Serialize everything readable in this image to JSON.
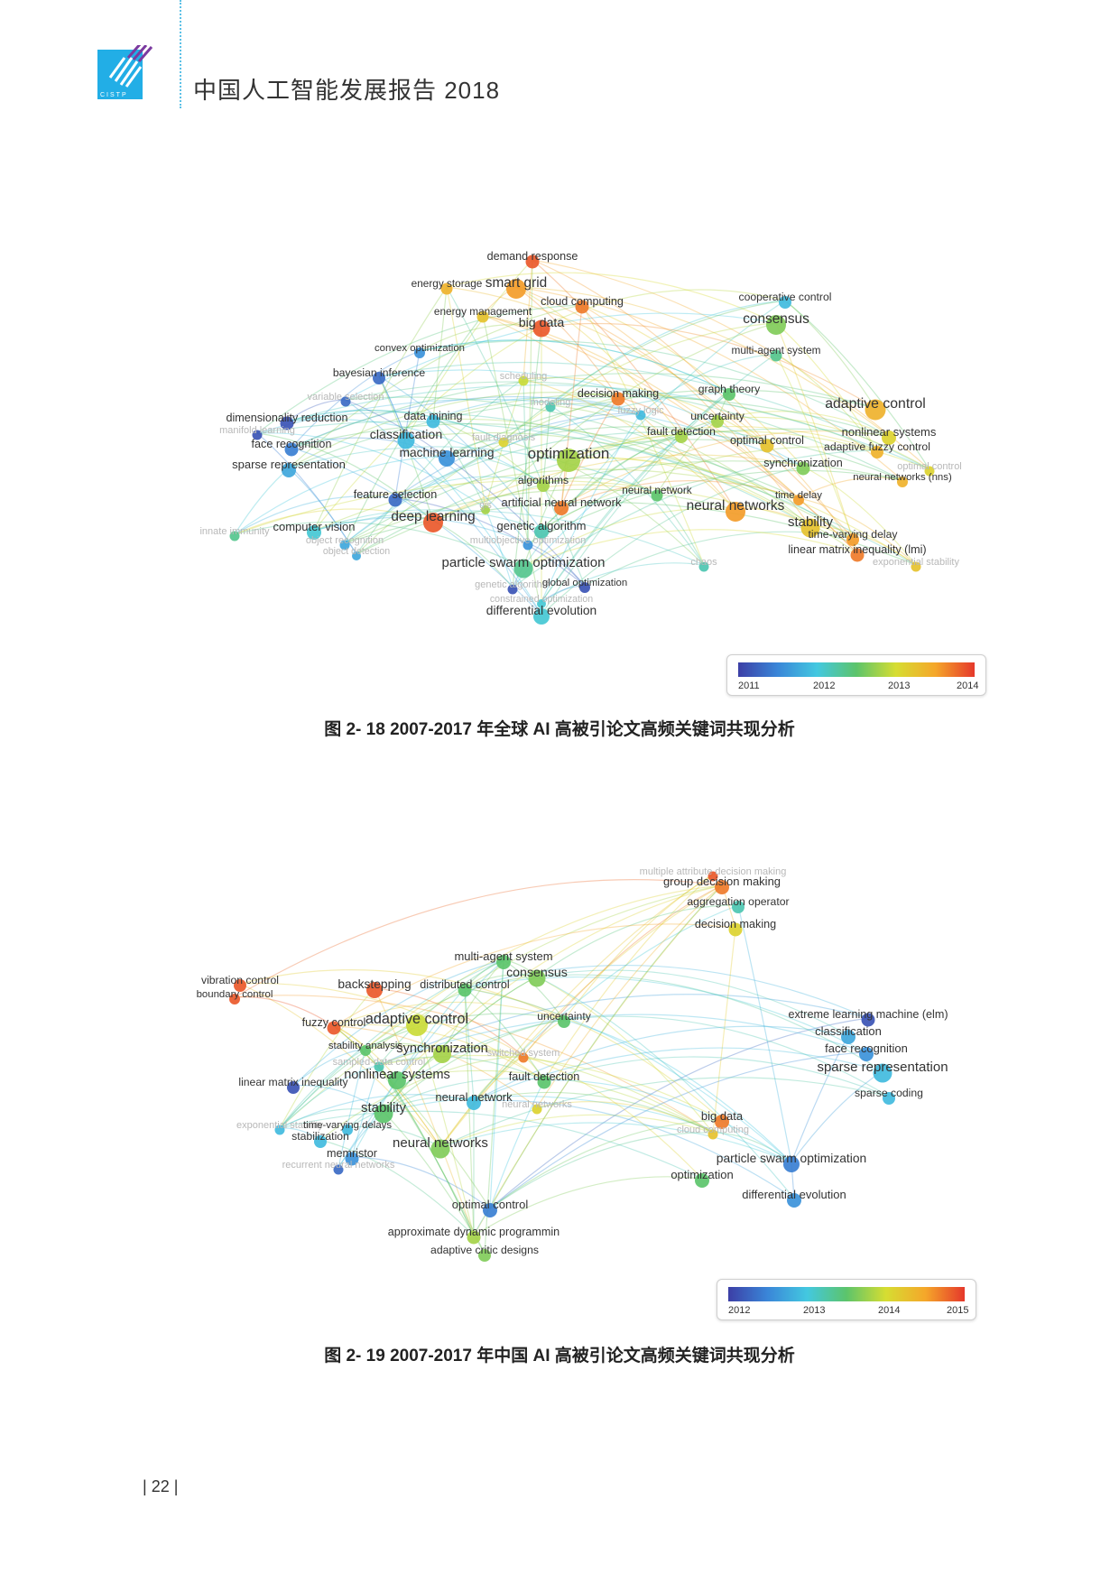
{
  "header": {
    "title": "中国人工智能发展报告 2018",
    "logo_text": "CISTP"
  },
  "page": {
    "number": "22"
  },
  "figures": [
    {
      "caption": "图 2- 18  2007-2017 年全球 AI 高被引论文高频关键词共现分析",
      "legend_ticks": [
        "2011",
        "2012",
        "2013",
        "2014"
      ],
      "legend_colors": [
        "#3c3fa6",
        "#3a86d8",
        "#43c8e0",
        "#5cc46b",
        "#d6dd32",
        "#f5a72a",
        "#e5382b"
      ],
      "nodes": [
        {
          "label": "demand response",
          "w": 0.9,
          "c": 0.95
        },
        {
          "label": "energy storage",
          "w": 0.7,
          "c": 0.8
        },
        {
          "label": "smart grid",
          "w": 1.6,
          "c": 0.85
        },
        {
          "label": "cloud computing",
          "w": 0.9,
          "c": 0.9
        },
        {
          "label": "energy management",
          "w": 0.7,
          "c": 0.75
        },
        {
          "label": "big data",
          "w": 1.3,
          "c": 0.95
        },
        {
          "label": "cooperative control",
          "w": 0.8,
          "c": 0.3
        },
        {
          "label": "consensus",
          "w": 1.6,
          "c": 0.55
        },
        {
          "label": "multi-agent system",
          "w": 0.7,
          "c": 0.45
        },
        {
          "label": "convex optimization",
          "w": 0.6,
          "c": 0.2
        },
        {
          "label": "bayesian inference",
          "w": 0.8,
          "c": 0.1
        },
        {
          "label": "scheduling",
          "w": 0.5,
          "c": 0.65
        },
        {
          "label": "variable selection",
          "w": 0.5,
          "c": 0.1
        },
        {
          "label": "modeling",
          "w": 0.5,
          "c": 0.4
        },
        {
          "label": "decision making",
          "w": 0.9,
          "c": 0.9
        },
        {
          "label": "graph theory",
          "w": 0.8,
          "c": 0.5
        },
        {
          "label": "adaptive control",
          "w": 1.7,
          "c": 0.8
        },
        {
          "label": "dimensionality reduction",
          "w": 0.9,
          "c": 0.05
        },
        {
          "label": "data mining",
          "w": 0.9,
          "c": 0.3
        },
        {
          "label": "fuzzy logic",
          "w": 0.5,
          "c": 0.3
        },
        {
          "label": "uncertainty",
          "w": 0.8,
          "c": 0.6
        },
        {
          "label": "manifold learning",
          "w": 0.5,
          "c": 0.05
        },
        {
          "label": "classification",
          "w": 1.3,
          "c": 0.3
        },
        {
          "label": "fault diagnosis",
          "w": 0.5,
          "c": 0.7
        },
        {
          "label": "fault detection",
          "w": 0.8,
          "c": 0.6
        },
        {
          "label": "nonlinear systems",
          "w": 1.0,
          "c": 0.7
        },
        {
          "label": "face recognition",
          "w": 0.9,
          "c": 0.15
        },
        {
          "label": "machine learning",
          "w": 1.2,
          "c": 0.2
        },
        {
          "label": "optimization",
          "w": 2.0,
          "c": 0.6
        },
        {
          "label": "optimal control",
          "w": 0.9,
          "c": 0.75
        },
        {
          "label": "adaptive fuzzy control",
          "w": 0.8,
          "c": 0.8
        },
        {
          "label": "sparse representation",
          "w": 1.0,
          "c": 0.25
        },
        {
          "label": "synchronization",
          "w": 0.9,
          "c": 0.55
        },
        {
          "label": "optimal control",
          "w": 0.5,
          "c": 0.7
        },
        {
          "label": "algorithms",
          "w": 0.8,
          "c": 0.6
        },
        {
          "label": "neural network",
          "w": 0.7,
          "c": 0.5
        },
        {
          "label": "neural networks (nns)",
          "w": 0.6,
          "c": 0.8
        },
        {
          "label": "feature selection",
          "w": 0.9,
          "c": 0.1
        },
        {
          "label": "time delay",
          "w": 0.6,
          "c": 0.85
        },
        {
          "label": "neural networks",
          "w": 1.6,
          "c": 0.85
        },
        {
          "label": "gis",
          "w": 0.4,
          "c": 0.6
        },
        {
          "label": "artificial neural network",
          "w": 1.0,
          "c": 0.9
        },
        {
          "label": "deep learning",
          "w": 1.6,
          "c": 0.95
        },
        {
          "label": "stability",
          "w": 1.5,
          "c": 0.75
        },
        {
          "label": "genetic algorithm",
          "w": 1.0,
          "c": 0.4
        },
        {
          "label": "innate immunity",
          "w": 0.5,
          "c": 0.45
        },
        {
          "label": "computer vision",
          "w": 1.0,
          "c": 0.35
        },
        {
          "label": "time-varying delay",
          "w": 0.8,
          "c": 0.85
        },
        {
          "label": "object recognition",
          "w": 0.5,
          "c": 0.25
        },
        {
          "label": "multiobjective optimization",
          "w": 0.5,
          "c": 0.2
        },
        {
          "label": "linear matrix inequality (lmi)",
          "w": 0.9,
          "c": 0.9
        },
        {
          "label": "object detection",
          "w": 0.4,
          "c": 0.25
        },
        {
          "label": "exponential stability",
          "w": 0.5,
          "c": 0.75
        },
        {
          "label": "particle swarm optimization",
          "w": 1.5,
          "c": 0.45
        },
        {
          "label": "chaos",
          "w": 0.5,
          "c": 0.4
        },
        {
          "label": "genetic algorithm",
          "w": 0.5,
          "c": 0.05
        },
        {
          "label": "global optimization",
          "w": 0.6,
          "c": 0.05
        },
        {
          "label": "constrained optimization",
          "w": 0.4,
          "c": 0.35
        },
        {
          "label": "differential evolution",
          "w": 1.2,
          "c": 0.35
        }
      ]
    },
    {
      "caption": "图 2- 19  2007-2017 年中国 AI 高被引论文高频关键词共现分析",
      "legend_ticks": [
        "2012",
        "2013",
        "2014",
        "2015"
      ],
      "legend_colors": [
        "#3c3fa6",
        "#3a86d8",
        "#43c8e0",
        "#5cc46b",
        "#d6dd32",
        "#f5a72a",
        "#e5382b"
      ],
      "nodes": [
        {
          "label": "multiple attribute decision making",
          "w": 0.5,
          "c": 0.95
        },
        {
          "label": "group decision making",
          "w": 1.0,
          "c": 0.9
        },
        {
          "label": "aggregation operator",
          "w": 0.8,
          "c": 0.4
        },
        {
          "label": "decision making",
          "w": 0.9,
          "c": 0.7
        },
        {
          "label": "multi-agent system",
          "w": 1.0,
          "c": 0.5
        },
        {
          "label": "consensus",
          "w": 1.3,
          "c": 0.55
        },
        {
          "label": "vibration control",
          "w": 0.8,
          "c": 0.95
        },
        {
          "label": "backstepping",
          "w": 1.2,
          "c": 0.95
        },
        {
          "label": "distributed control",
          "w": 0.9,
          "c": 0.5
        },
        {
          "label": "boundary control",
          "w": 0.6,
          "c": 0.95
        },
        {
          "label": "extreme learning machine (elm)",
          "w": 0.9,
          "c": 0.05
        },
        {
          "label": "uncertainty",
          "w": 0.8,
          "c": 0.5
        },
        {
          "label": "fuzzy control",
          "w": 0.9,
          "c": 0.95
        },
        {
          "label": "adaptive control",
          "w": 1.8,
          "c": 0.65
        },
        {
          "label": "classification",
          "w": 1.0,
          "c": 0.25
        },
        {
          "label": "stability analysis",
          "w": 0.6,
          "c": 0.5
        },
        {
          "label": "face recognition",
          "w": 1.0,
          "c": 0.2
        },
        {
          "label": "synchronization",
          "w": 1.4,
          "c": 0.6
        },
        {
          "label": "switched system",
          "w": 0.5,
          "c": 0.9
        },
        {
          "label": "sampled-data control",
          "w": 0.5,
          "c": 0.4
        },
        {
          "label": "sparse representation",
          "w": 1.5,
          "c": 0.3
        },
        {
          "label": "nonlinear systems",
          "w": 1.4,
          "c": 0.5
        },
        {
          "label": "fault detection",
          "w": 0.9,
          "c": 0.5
        },
        {
          "label": "linear matrix inequality",
          "w": 0.8,
          "c": 0.05
        },
        {
          "label": "sparse coding",
          "w": 0.8,
          "c": 0.3
        },
        {
          "label": "neural network",
          "w": 1.0,
          "c": 0.3
        },
        {
          "label": "stability",
          "w": 1.5,
          "c": 0.5
        },
        {
          "label": "neural networks",
          "w": 0.5,
          "c": 0.7
        },
        {
          "label": "big data",
          "w": 1.0,
          "c": 0.9
        },
        {
          "label": "exponential stability",
          "w": 0.5,
          "c": 0.3
        },
        {
          "label": "time-varying delays",
          "w": 0.6,
          "c": 0.3
        },
        {
          "label": "stabilization",
          "w": 0.8,
          "c": 0.3
        },
        {
          "label": "cloud computing",
          "w": 0.5,
          "c": 0.75
        },
        {
          "label": "neural networks",
          "w": 1.5,
          "c": 0.55
        },
        {
          "label": "memristor",
          "w": 0.9,
          "c": 0.2
        },
        {
          "label": "recurrent neural networks",
          "w": 0.5,
          "c": 0.1
        },
        {
          "label": "particle swarm optimization",
          "w": 1.2,
          "c": 0.15
        },
        {
          "label": "optimization",
          "w": 1.0,
          "c": 0.5
        },
        {
          "label": "differential evolution",
          "w": 1.0,
          "c": 0.2
        },
        {
          "label": "optimal control",
          "w": 1.0,
          "c": 0.15
        },
        {
          "label": "approximate dynamic programmin",
          "w": 0.9,
          "c": 0.6
        },
        {
          "label": "adaptive critic designs",
          "w": 0.8,
          "c": 0.55
        }
      ]
    }
  ]
}
